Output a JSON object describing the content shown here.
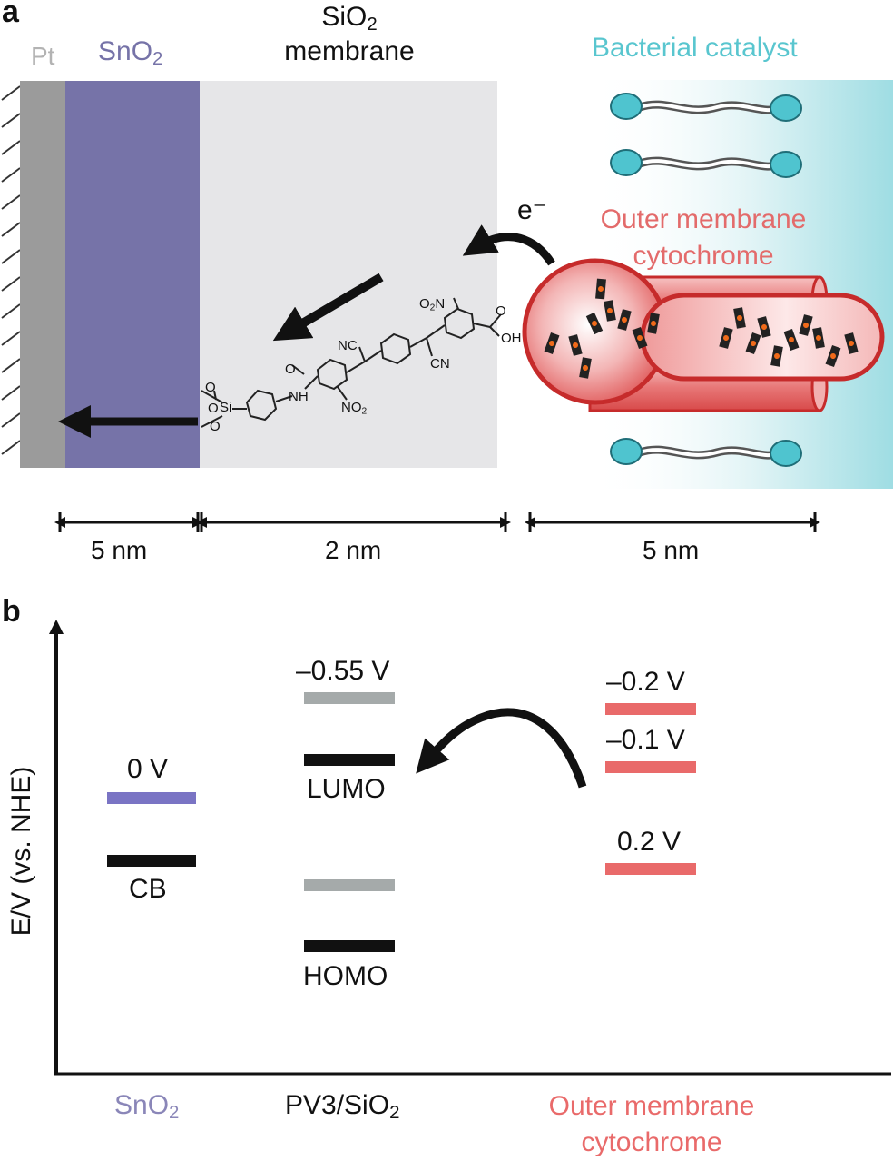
{
  "panel_a": {
    "label": "a",
    "layer_pt": "Pt",
    "layer_sno2": {
      "main": "SnO",
      "sub": "2"
    },
    "layer_sio2": {
      "main": "SiO",
      "sub": "2",
      "line2": "membrane"
    },
    "bacterial_catalyst": "Bacterial catalyst",
    "electron": "e⁻",
    "cytochrome_line1": "Outer membrane",
    "cytochrome_line2": "cytochrome",
    "molecule_labels": {
      "no2_top": {
        "main": "O",
        "sub": "2",
        "tail": "N"
      },
      "oh": "OH",
      "o_carbonyl_right": "O",
      "nc": "NC",
      "cn": "CN",
      "o_amide": "O",
      "nh": "NH",
      "no2_bottom": {
        "main": "NO",
        "sub": "2"
      },
      "si": "Si",
      "o1": "O",
      "o2": "O",
      "o3": "O"
    },
    "dimensions": [
      "5 nm",
      "2 nm",
      "5 nm"
    ],
    "colors": {
      "pt": "#9b9b9b",
      "sno2": "#7673a8",
      "sio2": "#e6e6e8",
      "catalyst_text": "#59c6cf",
      "cytochrome": "#e36b6b"
    }
  },
  "panel_b": {
    "label": "b",
    "y_axis_label": "E/V (vs. NHE)",
    "sno2_level": "0 V",
    "cb_label": "CB",
    "pv3_top": "–0.55 V",
    "lumo": "LUMO",
    "homo": "HOMO",
    "cyt_levels": [
      "–0.2 V",
      "–0.1 V",
      "0.2 V"
    ],
    "x_categories": {
      "sno2": {
        "main": "SnO",
        "sub": "2"
      },
      "pv3": {
        "main": "PV3/SiO",
        "sub": "2"
      },
      "cyt_line1": "Outer membrane",
      "cyt_line2": "cytochrome"
    },
    "colors": {
      "sno2_level": "#7a74c4",
      "black_level": "#111111",
      "gray_level": "#a5aaaa",
      "cyt_level": "#e96a6a"
    }
  }
}
